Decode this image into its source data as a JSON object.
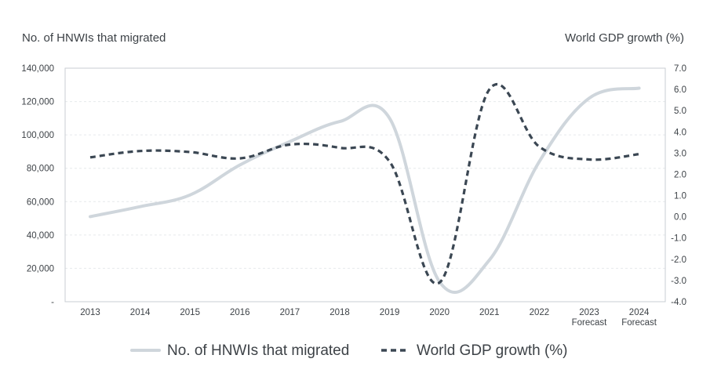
{
  "chart_data": {
    "type": "line",
    "categories": [
      "2013",
      "2014",
      "2015",
      "2016",
      "2017",
      "2018",
      "2019",
      "2020",
      "2021",
      "2022",
      "2023",
      "2024"
    ],
    "category_sublabels": [
      "",
      "",
      "",
      "",
      "",
      "",
      "",
      "",
      "",
      "",
      "Forecast",
      "Forecast"
    ],
    "left_axis": {
      "title": "No. of HNWIs that migrated",
      "ylim": [
        0,
        140000
      ],
      "ticks": [
        0,
        20000,
        40000,
        60000,
        80000,
        100000,
        120000,
        140000
      ],
      "tick_labels": [
        "-",
        "20,000",
        "40,000",
        "60,000",
        "80,000",
        "100,000",
        "120,000",
        "140,000"
      ]
    },
    "right_axis": {
      "title": "World GDP growth (%)",
      "ylim": [
        -4.0,
        7.0
      ],
      "ticks": [
        -4,
        -3,
        -2,
        -1,
        0,
        1,
        2,
        3,
        4,
        5,
        6,
        7
      ],
      "tick_labels": [
        "-4.0",
        "-3.0",
        "-2.0",
        "-1.0",
        "0.0",
        "1.0",
        "2.0",
        "3.0",
        "4.0",
        "5.0",
        "6.0",
        "7.0"
      ]
    },
    "series": [
      {
        "name": "No. of HNWIs that migrated",
        "axis": "left",
        "style": "solid",
        "color": "#cfd6dc",
        "values": [
          51000,
          57000,
          64000,
          82000,
          96000,
          108000,
          110000,
          12000,
          25000,
          84000,
          122000,
          128000
        ]
      },
      {
        "name": "World GDP growth (%)",
        "axis": "right",
        "style": "dashed",
        "color": "#3b4753",
        "values": [
          2.8,
          3.1,
          3.05,
          2.75,
          3.4,
          3.25,
          2.6,
          -3.1,
          6.0,
          3.3,
          2.7,
          2.95
        ]
      }
    ],
    "legend": {
      "position": "bottom",
      "entries": [
        "No. of HNWIs that migrated",
        "World GDP growth (%)"
      ]
    },
    "grid": true
  }
}
